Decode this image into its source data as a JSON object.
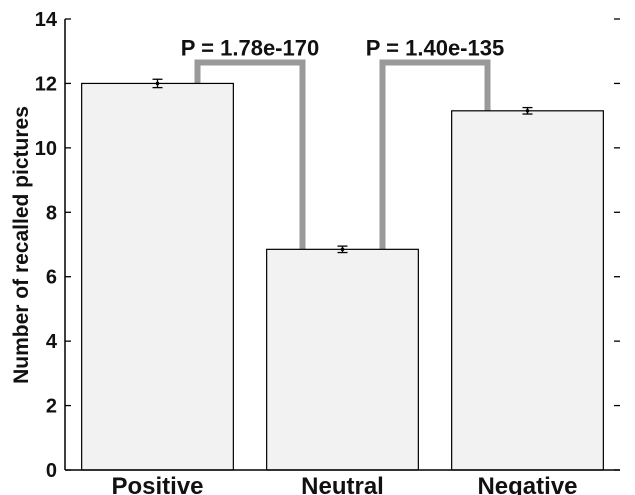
{
  "chart_data": {
    "type": "bar",
    "title": "",
    "xlabel": "",
    "ylabel": "Number of recalled pictures",
    "ylim": [
      0,
      14
    ],
    "yticks": [
      0,
      2,
      4,
      6,
      8,
      10,
      12,
      14
    ],
    "ytick_labels": [
      "0",
      "2",
      "4",
      "6",
      "8",
      "10",
      "12",
      "14"
    ],
    "categories": [
      "Positive",
      "Neutral",
      "Negative"
    ],
    "values": [
      12.0,
      6.85,
      11.15
    ],
    "errors": [
      0.13,
      0.1,
      0.1
    ],
    "bar_color": "#f2f2f2",
    "bracket_color": "#999999",
    "comparisons": [
      {
        "from": 0,
        "to": 1,
        "label": "P = 1.78e-170",
        "level": 12.65
      },
      {
        "from": 1,
        "to": 2,
        "label": "P = 1.40e-135",
        "level": 12.65
      }
    ],
    "grid": false,
    "legend": "none"
  }
}
